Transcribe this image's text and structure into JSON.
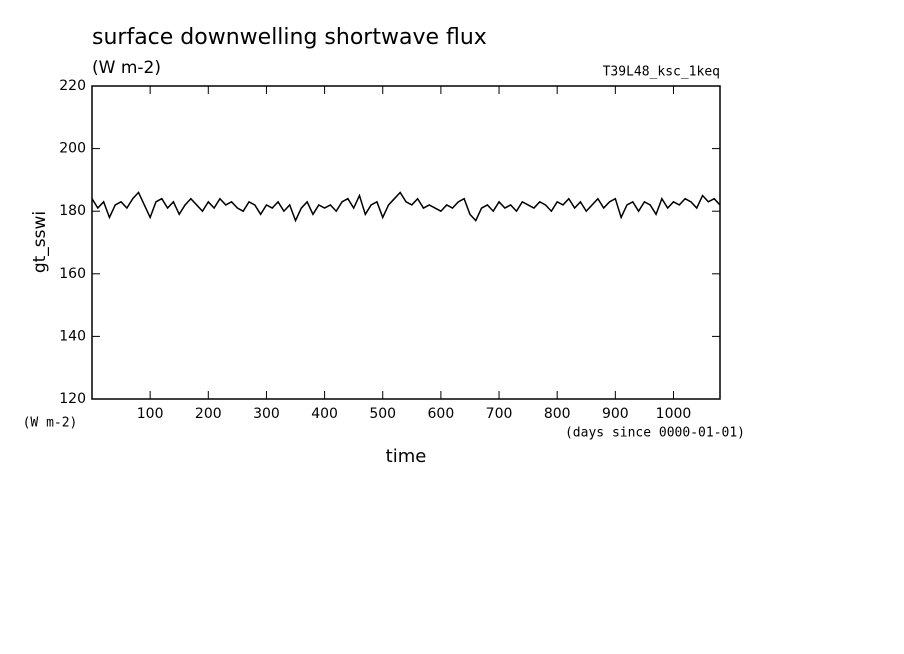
{
  "chart_data": {
    "type": "line",
    "title": "surface downwelling shortwave flux",
    "subtitle": "(W m-2)",
    "annotation": "T39L48_ksc_1keq",
    "y_label": "gt_sswi",
    "y_unit": "(W m-2)",
    "x_label": "time",
    "x_unit": "(days since 0000-01-01)",
    "xlim": [
      0,
      1080
    ],
    "ylim": [
      120,
      220
    ],
    "xticks": [
      100,
      200,
      300,
      400,
      500,
      600,
      700,
      800,
      900,
      1000
    ],
    "yticks": [
      120,
      140,
      160,
      180,
      200,
      220
    ],
    "x": [
      0,
      10,
      20,
      30,
      40,
      50,
      60,
      70,
      80,
      90,
      100,
      110,
      120,
      130,
      140,
      150,
      160,
      170,
      180,
      190,
      200,
      210,
      220,
      230,
      240,
      250,
      260,
      270,
      280,
      290,
      300,
      310,
      320,
      330,
      340,
      350,
      360,
      370,
      380,
      390,
      400,
      410,
      420,
      430,
      440,
      450,
      460,
      470,
      480,
      490,
      500,
      510,
      520,
      530,
      540,
      550,
      560,
      570,
      580,
      590,
      600,
      610,
      620,
      630,
      640,
      650,
      660,
      670,
      680,
      690,
      700,
      710,
      720,
      730,
      740,
      750,
      760,
      770,
      780,
      790,
      800,
      810,
      820,
      830,
      840,
      850,
      860,
      870,
      880,
      890,
      900,
      910,
      920,
      930,
      940,
      950,
      960,
      970,
      980,
      990,
      1000,
      1010,
      1020,
      1030,
      1040,
      1050,
      1060,
      1070,
      1080
    ],
    "series": [
      {
        "color": "#000000",
        "values": [
          184,
          181,
          183,
          178,
          182,
          183,
          181,
          184,
          186,
          182,
          178,
          183,
          184,
          181,
          183,
          179,
          182,
          184,
          182,
          180,
          183,
          181,
          184,
          182,
          183,
          181,
          180,
          183,
          182,
          179,
          182,
          181,
          183,
          180,
          182,
          177,
          181,
          183,
          179,
          182,
          181,
          182,
          180,
          183,
          184,
          181,
          185,
          179,
          182,
          183,
          178,
          182,
          184,
          186,
          183,
          182,
          184,
          181,
          182,
          181,
          180,
          182,
          181,
          183,
          184,
          179,
          177,
          181,
          182,
          180,
          183,
          181,
          182,
          180,
          183,
          182,
          181,
          183,
          182,
          180,
          183,
          182,
          184,
          181,
          183,
          180,
          182,
          184,
          181,
          183,
          184,
          178,
          182,
          183,
          180,
          183,
          182,
          179,
          184,
          181,
          183,
          182,
          184,
          183,
          181,
          185,
          183,
          184,
          182
        ]
      }
    ]
  }
}
